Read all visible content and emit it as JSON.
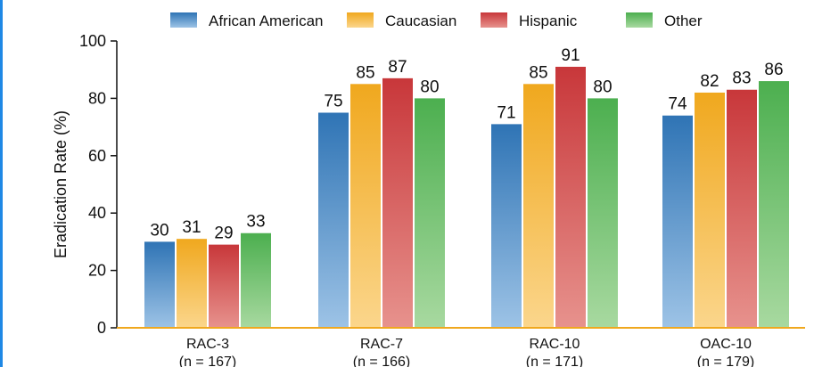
{
  "chart_data": {
    "type": "bar",
    "title": "",
    "xlabel": "",
    "ylabel": "Eradication Rate (%)",
    "ylim": [
      0,
      100
    ],
    "yticks": [
      0,
      20,
      40,
      60,
      80,
      100
    ],
    "grid": false,
    "legend_position": "top",
    "categories": [
      {
        "name": "RAC-3",
        "sub": "(n = 167)"
      },
      {
        "name": "RAC-7",
        "sub": "(n = 166)"
      },
      {
        "name": "RAC-10",
        "sub": "(n = 171)"
      },
      {
        "name": "OAC-10",
        "sub": "(n = 179)"
      }
    ],
    "series": [
      {
        "name": "African American",
        "color": "#2f74b5",
        "light": "#9dc3e6",
        "values": [
          30,
          75,
          71,
          74
        ]
      },
      {
        "name": "Caucasian",
        "color": "#f0a81e",
        "light": "#fbd68c",
        "values": [
          31,
          85,
          85,
          82
        ]
      },
      {
        "name": "Hispanic",
        "color": "#c8373a",
        "light": "#e7928d",
        "values": [
          29,
          87,
          91,
          83
        ]
      },
      {
        "name": "Other",
        "color": "#4caf4f",
        "light": "#a8d9a0",
        "values": [
          33,
          80,
          80,
          86
        ]
      }
    ],
    "axis_color": "#f0a81e"
  }
}
